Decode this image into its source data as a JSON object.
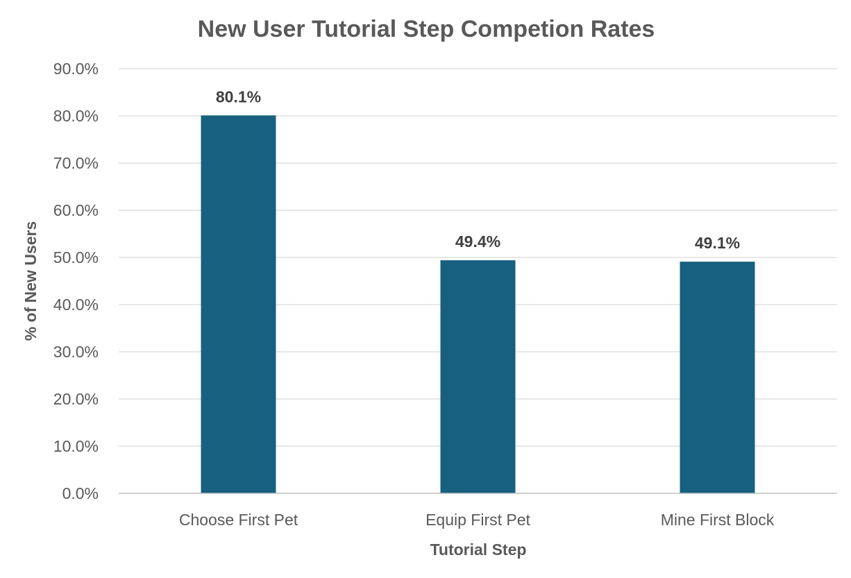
{
  "chart_data": {
    "type": "bar",
    "title": "New User Tutorial Step Competion Rates",
    "xlabel": "Tutorial Step",
    "ylabel": "% of New Users",
    "categories": [
      "Choose First Pet",
      "Equip First Pet",
      "Mine First Block"
    ],
    "values": [
      80.1,
      49.4,
      49.1
    ],
    "data_labels": [
      "80.1%",
      "49.4%",
      "49.1%"
    ],
    "ylim": [
      0,
      90
    ],
    "y_ticks": [
      0,
      10,
      20,
      30,
      40,
      50,
      60,
      70,
      80,
      90
    ],
    "y_tick_labels": [
      "0.0%",
      "10.0%",
      "20.0%",
      "30.0%",
      "40.0%",
      "50.0%",
      "60.0%",
      "70.0%",
      "80.0%",
      "90.0%"
    ],
    "grid": true,
    "legend": "none",
    "bar_color": "#17607f"
  }
}
